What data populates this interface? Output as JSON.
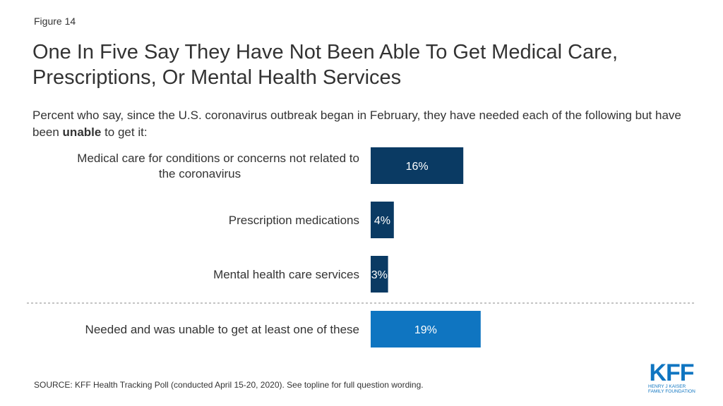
{
  "figure_label": "Figure 14",
  "title": "One In Five Say They Have Not Been Able To Get Medical Care, Prescriptions, Or Mental Health Services",
  "subtitle": {
    "before": "Percent who say, since the U.S. coronavirus outbreak began in February, they have needed each of the following but have been ",
    "bold": "unable",
    "after": " to get it:"
  },
  "chart_data": {
    "type": "bar",
    "orientation": "horizontal",
    "categories": [
      [
        "Medical care for conditions or concerns not related to",
        "the coronavirus"
      ],
      [
        "Prescription medications"
      ],
      [
        "Mental health care services"
      ],
      [
        "Needed and was unable to get at least one of these"
      ]
    ],
    "values": [
      16,
      4,
      3,
      19
    ],
    "data_labels": [
      "16%",
      "4%",
      "3%",
      "19%"
    ],
    "colors": [
      "#0a3a63",
      "#0a3a63",
      "#0a3a63",
      "#0f75c1"
    ],
    "separator_before_index": 3,
    "xlim": [
      0,
      100
    ]
  },
  "source": "SOURCE: KFF Health Tracking Poll (conducted April 15-20, 2020). See topline for full question wording.",
  "logo": {
    "mark": "KFF",
    "line1": "HENRY J KAISER",
    "line2": "FAMILY FOUNDATION",
    "color": "#0f75c1"
  }
}
